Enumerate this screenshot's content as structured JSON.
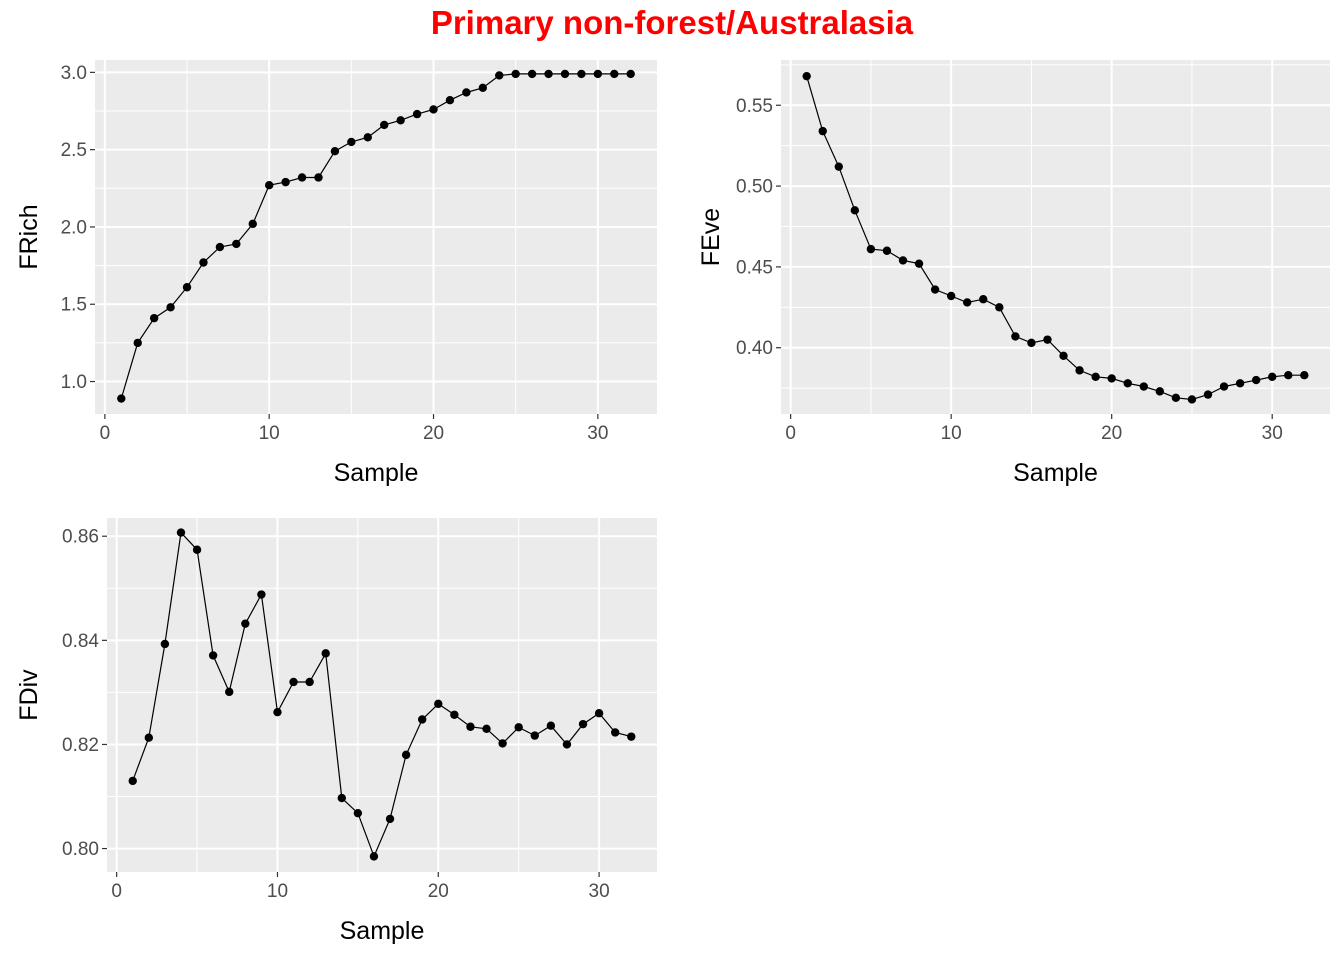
{
  "title": "Primary non-forest/Australasia",
  "colors": {
    "title": "#ff0000",
    "panel_bg": "#ebebeb",
    "grid": "#ffffff",
    "marks": "#000000",
    "tick_text": "#4d4d4d"
  },
  "chart_data": [
    {
      "type": "line",
      "xlabel": "Sample",
      "ylabel": "FRich",
      "xlim": [
        -0.6,
        33.6
      ],
      "ylim": [
        0.79,
        3.08
      ],
      "xticks": [
        0,
        10,
        20,
        30
      ],
      "yticks": [
        1.0,
        1.5,
        2.0,
        2.5,
        3.0
      ],
      "ytick_labels": [
        "1.0",
        "1.5",
        "2.0",
        "2.5",
        "3.0"
      ],
      "grid": true,
      "x": [
        1,
        2,
        3,
        4,
        5,
        6,
        7,
        8,
        9,
        10,
        11,
        12,
        13,
        14,
        15,
        16,
        17,
        18,
        19,
        20,
        21,
        22,
        23,
        24,
        25,
        26,
        27,
        28,
        29,
        30,
        31,
        32
      ],
      "values": [
        0.89,
        1.25,
        1.41,
        1.48,
        1.61,
        1.77,
        1.87,
        1.89,
        2.02,
        2.27,
        2.29,
        2.32,
        2.32,
        2.49,
        2.55,
        2.58,
        2.66,
        2.69,
        2.73,
        2.76,
        2.82,
        2.87,
        2.9,
        2.98,
        2.99,
        2.99,
        2.99,
        2.99,
        2.99,
        2.99,
        2.99,
        2.99
      ]
    },
    {
      "type": "line",
      "xlabel": "Sample",
      "ylabel": "FEve",
      "xlim": [
        -0.6,
        33.6
      ],
      "ylim": [
        0.359,
        0.578
      ],
      "xticks": [
        0,
        10,
        20,
        30
      ],
      "yticks": [
        0.4,
        0.45,
        0.5,
        0.55
      ],
      "ytick_labels": [
        "0.40",
        "0.45",
        "0.50",
        "0.55"
      ],
      "grid": true,
      "x": [
        1,
        2,
        3,
        4,
        5,
        6,
        7,
        8,
        9,
        10,
        11,
        12,
        13,
        14,
        15,
        16,
        17,
        18,
        19,
        20,
        21,
        22,
        23,
        24,
        25,
        26,
        27,
        28,
        29,
        30,
        31,
        32
      ],
      "values": [
        0.568,
        0.534,
        0.512,
        0.485,
        0.461,
        0.46,
        0.454,
        0.452,
        0.436,
        0.432,
        0.428,
        0.43,
        0.425,
        0.407,
        0.403,
        0.405,
        0.395,
        0.386,
        0.382,
        0.381,
        0.378,
        0.376,
        0.373,
        0.369,
        0.368,
        0.371,
        0.376,
        0.378,
        0.38,
        0.382,
        0.383,
        0.383
      ]
    },
    {
      "type": "line",
      "xlabel": "Sample",
      "ylabel": "FDiv",
      "xlim": [
        -0.6,
        33.6
      ],
      "ylim": [
        0.7955,
        0.8635
      ],
      "xticks": [
        0,
        10,
        20,
        30
      ],
      "yticks": [
        0.8,
        0.82,
        0.84,
        0.86
      ],
      "ytick_labels": [
        "0.80",
        "0.82",
        "0.84",
        "0.86"
      ],
      "grid": true,
      "x": [
        1,
        2,
        3,
        4,
        5,
        6,
        7,
        8,
        9,
        10,
        11,
        12,
        13,
        14,
        15,
        16,
        17,
        18,
        19,
        20,
        21,
        22,
        23,
        24,
        25,
        26,
        27,
        28,
        29,
        30,
        31,
        32
      ],
      "values": [
        0.813,
        0.8213,
        0.8393,
        0.8607,
        0.8574,
        0.8371,
        0.8301,
        0.8432,
        0.8488,
        0.8262,
        0.832,
        0.832,
        0.8375,
        0.8097,
        0.8068,
        0.7985,
        0.8057,
        0.818,
        0.8248,
        0.8278,
        0.8257,
        0.8234,
        0.823,
        0.8202,
        0.8233,
        0.8217,
        0.8236,
        0.82,
        0.8239,
        0.826,
        0.8223,
        0.8215
      ]
    }
  ]
}
